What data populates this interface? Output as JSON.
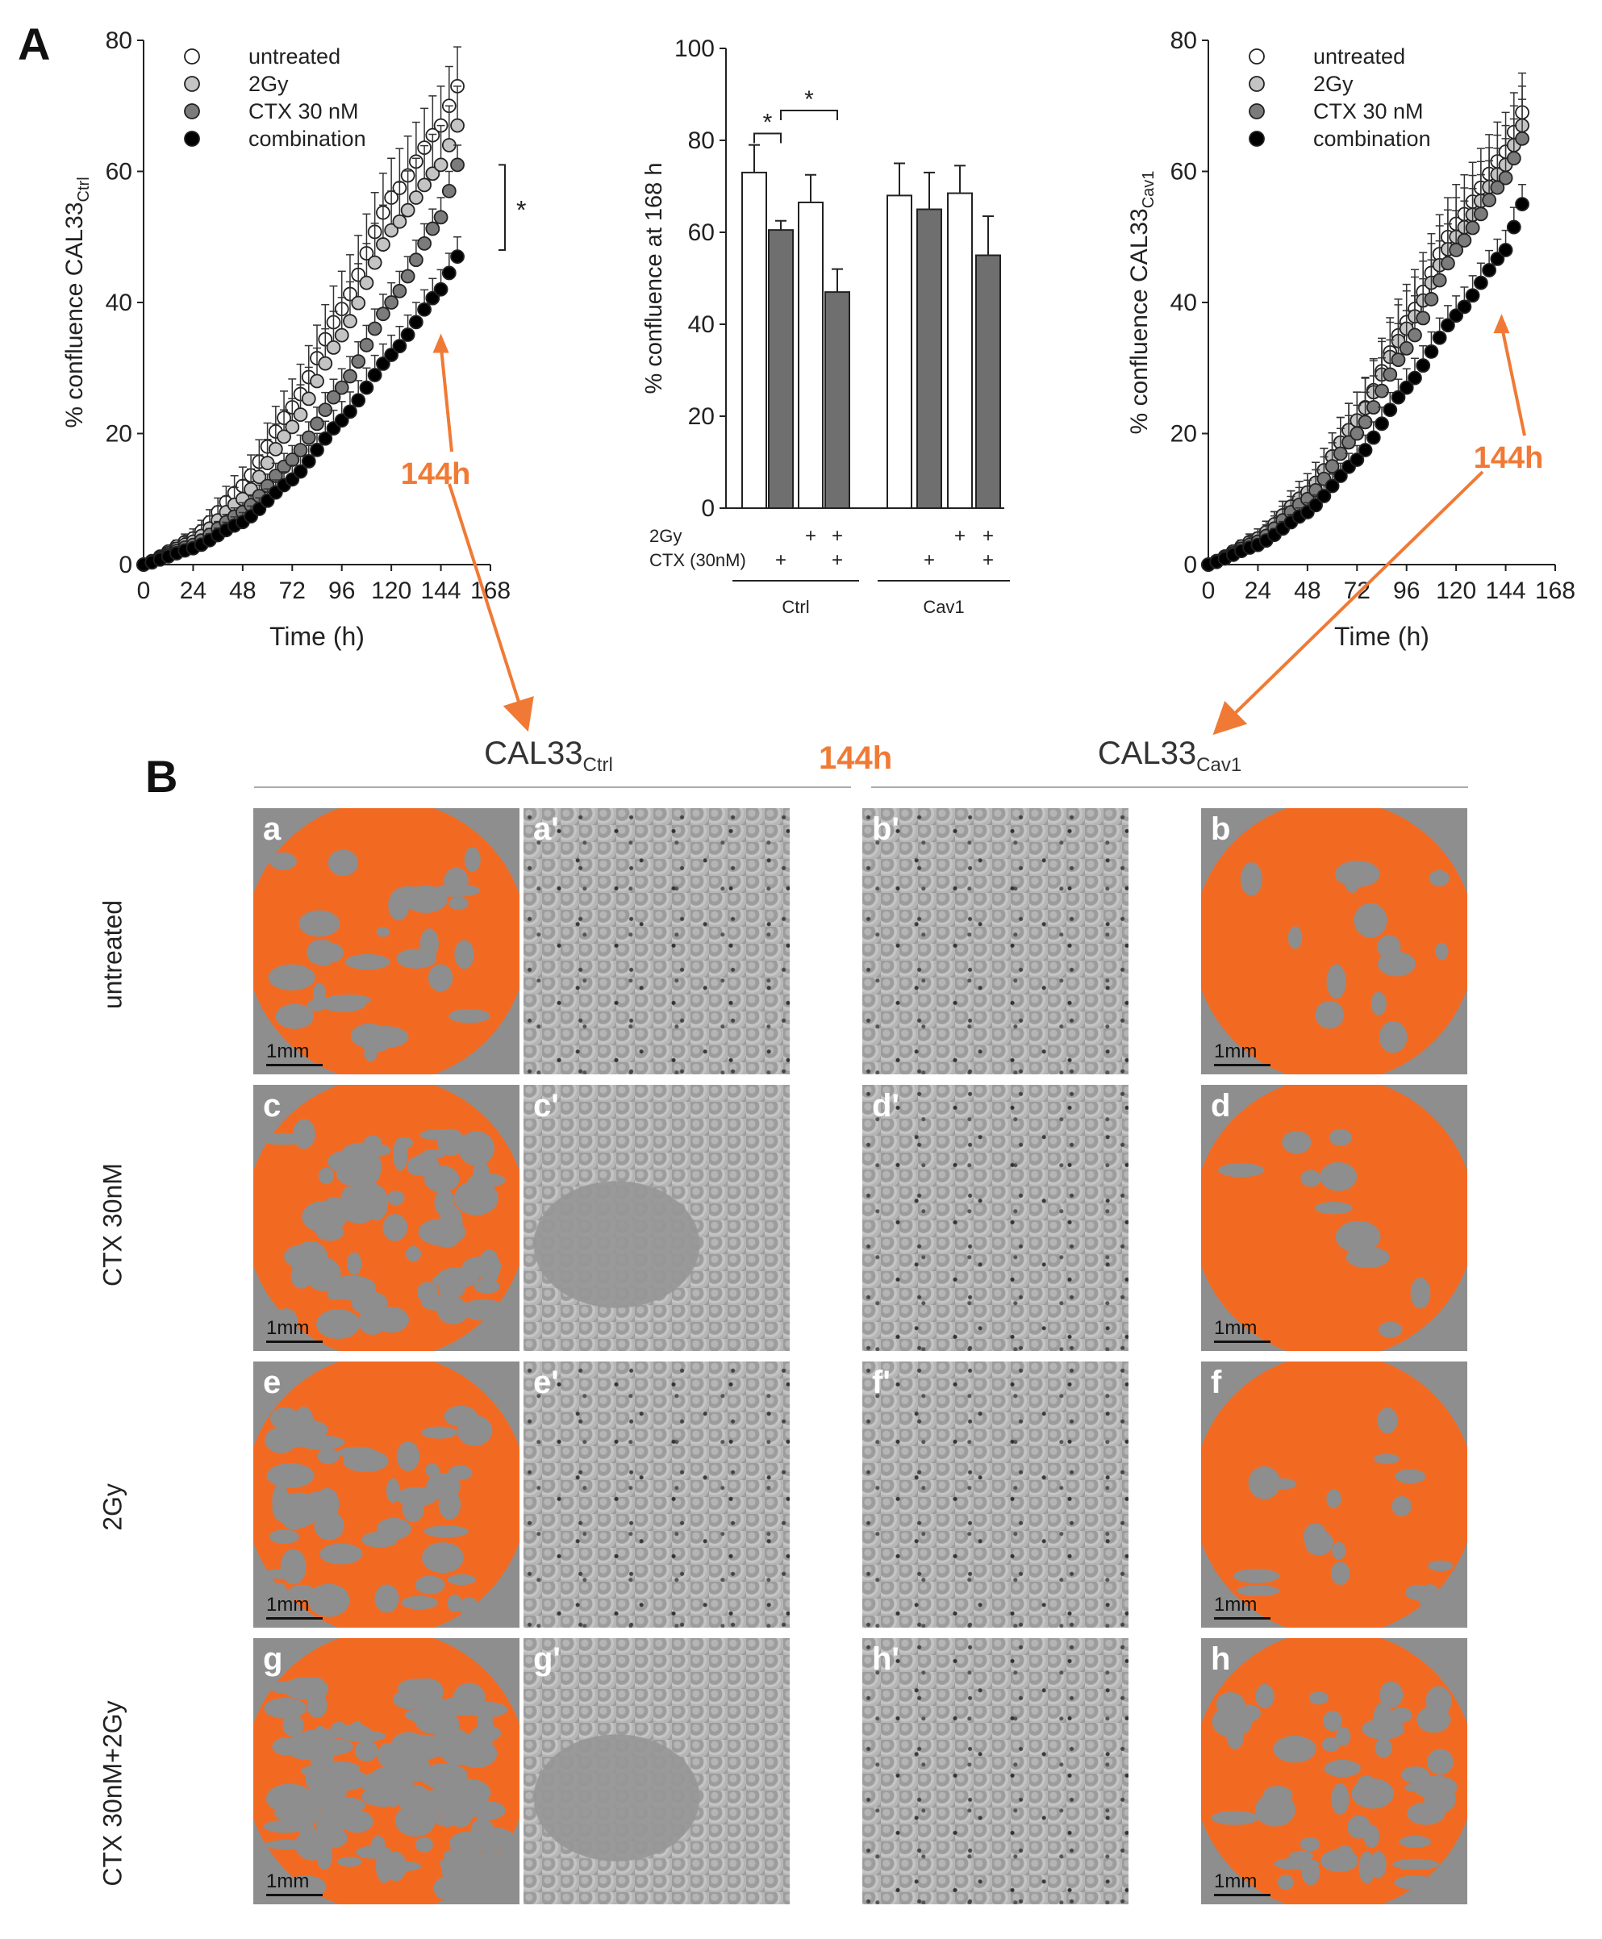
{
  "panels": {
    "A": "A",
    "B": "B"
  },
  "colors": {
    "orange": "#f07a35",
    "gray_bar": "#6f6f6f",
    "light_gray": "#bdbdbd",
    "mid_gray": "#7f7f7f"
  },
  "chart_data": [
    {
      "type": "scatter",
      "id": "ctrl_growth",
      "ylabel_prefix": "% confluence CAL33",
      "ylabel_sub": "Ctrl",
      "xlabel": "Time (h)",
      "xlim": [
        0,
        168
      ],
      "ylim": [
        0,
        80
      ],
      "xticks": [
        "0",
        "24",
        "48",
        "72",
        "96",
        "120",
        "144",
        "168"
      ],
      "yticks": [
        "0",
        "20",
        "40",
        "60",
        "80"
      ],
      "legend": [
        "untreated",
        "2Gy",
        "CTX 30 nM",
        "combination"
      ],
      "significance": "*",
      "annotation": "144h",
      "series": [
        {
          "name": "untreated",
          "values_at": {
            "0": 0,
            "24": 4,
            "48": 12,
            "72": 24,
            "96": 39,
            "120": 56,
            "144": 67,
            "152": 73
          },
          "error": 6
        },
        {
          "name": "2Gy",
          "values_at": {
            "0": 0,
            "24": 3.5,
            "48": 10,
            "72": 21,
            "96": 35,
            "120": 51,
            "144": 61,
            "152": 67
          },
          "error": 6
        },
        {
          "name": "CTX 30 nM",
          "values_at": {
            "0": 0,
            "24": 3,
            "48": 8,
            "72": 16,
            "96": 27,
            "120": 40,
            "144": 53,
            "152": 61
          },
          "error": 3
        },
        {
          "name": "combination",
          "values_at": {
            "0": 0,
            "24": 2.5,
            "48": 6.5,
            "72": 13,
            "96": 22,
            "120": 32,
            "144": 42,
            "152": 47
          },
          "error": 3
        }
      ]
    },
    {
      "type": "bar",
      "id": "confluence_168",
      "ylabel": "% confluence at 168 h",
      "ylim": [
        0,
        100
      ],
      "yticks": [
        "0",
        "20",
        "40",
        "60",
        "80",
        "100"
      ],
      "bars": [
        {
          "group": "Ctrl",
          "value": 73,
          "error": 6,
          "fill": "white"
        },
        {
          "group": "Ctrl",
          "value": 60.5,
          "error": 2,
          "fill": "gray"
        },
        {
          "group": "Ctrl",
          "value": 66.5,
          "error": 6,
          "fill": "white"
        },
        {
          "group": "Ctrl",
          "value": 47,
          "error": 5,
          "fill": "gray"
        },
        {
          "group": "Cav1",
          "value": 68,
          "error": 7,
          "fill": "white"
        },
        {
          "group": "Cav1",
          "value": 65,
          "error": 8,
          "fill": "gray"
        },
        {
          "group": "Cav1",
          "value": 68.5,
          "error": 6,
          "fill": "white"
        },
        {
          "group": "Cav1",
          "value": 55,
          "error": 8.5,
          "fill": "gray"
        }
      ],
      "row_labels": [
        "2Gy",
        "CTX (30nM)"
      ],
      "row_2gy": [
        "",
        "",
        "+",
        "+",
        "",
        "",
        "+",
        "+"
      ],
      "row_ctx": [
        "",
        "+",
        "",
        "+",
        "",
        "+",
        "",
        "+"
      ],
      "groups": [
        "Ctrl",
        "Cav1"
      ],
      "significance": [
        "*",
        "*"
      ]
    },
    {
      "type": "scatter",
      "id": "cav1_growth",
      "ylabel_prefix": "% confluence CAL33",
      "ylabel_sub": "Cav1",
      "xlabel": "Time (h)",
      "xlim": [
        0,
        168
      ],
      "ylim": [
        0,
        80
      ],
      "xticks": [
        "0",
        "24",
        "48",
        "72",
        "96",
        "120",
        "144",
        "168"
      ],
      "yticks": [
        "0",
        "20",
        "40",
        "60",
        "80"
      ],
      "legend": [
        "untreated",
        "2Gy",
        "CTX 30 nM",
        "combination"
      ],
      "annotation": "144h",
      "series": [
        {
          "name": "untreated",
          "values_at": {
            "0": 0,
            "24": 4,
            "48": 11,
            "72": 22,
            "96": 37,
            "120": 52,
            "144": 63,
            "152": 69
          },
          "error": 6
        },
        {
          "name": "2Gy",
          "values_at": {
            "0": 0,
            "24": 4,
            "48": 11,
            "72": 22,
            "96": 36,
            "120": 50,
            "144": 61,
            "152": 67
          },
          "error": 6
        },
        {
          "name": "CTX 30 nM",
          "values_at": {
            "0": 0,
            "24": 3.5,
            "48": 10,
            "72": 20,
            "96": 33,
            "120": 48,
            "144": 59,
            "152": 65
          },
          "error": 6
        },
        {
          "name": "combination",
          "values_at": {
            "0": 0,
            "24": 3,
            "48": 8,
            "72": 16,
            "96": 27,
            "120": 38,
            "144": 48,
            "152": 55
          },
          "error": 3
        }
      ]
    }
  ],
  "panelB": {
    "header_left": "CAL33",
    "header_left_sub": "Ctrl",
    "header_right": "CAL33",
    "header_right_sub": "Cav1",
    "center_label": "144h",
    "row_labels": [
      "untreated",
      "CTX 30nM",
      "2Gy",
      "CTX 30nM+2Gy"
    ],
    "scale": "1mm",
    "tiles": [
      [
        "a",
        "a'",
        "b'",
        "b"
      ],
      [
        "c",
        "c'",
        "d'",
        "d"
      ],
      [
        "e",
        "e'",
        "f'",
        "f"
      ],
      [
        "g",
        "g'",
        "h'",
        "h"
      ]
    ],
    "orange_coverage": [
      [
        0.8,
        0.92
      ],
      [
        0.62,
        0.94
      ],
      [
        0.7,
        0.9
      ],
      [
        0.35,
        0.72
      ]
    ]
  }
}
